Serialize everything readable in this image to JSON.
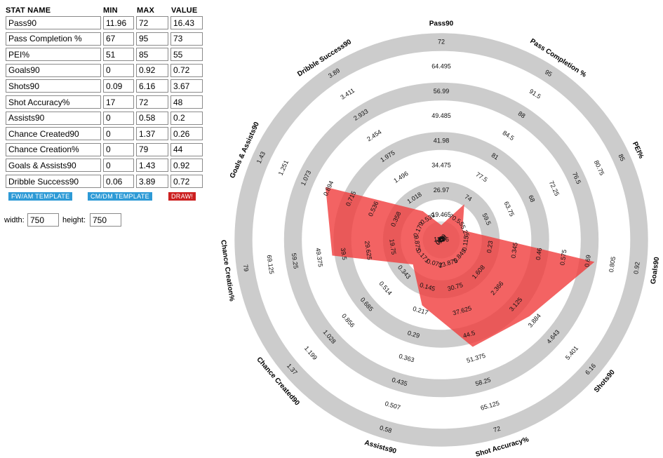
{
  "form": {
    "headers": {
      "name": "STAT NAME",
      "min": "MIN",
      "max": "MAX",
      "value": "VALUE"
    },
    "rows": [
      {
        "name": "Pass90",
        "min": "11.96",
        "max": "72",
        "value": "16.43"
      },
      {
        "name": "Pass Completion %",
        "min": "67",
        "max": "95",
        "value": "73"
      },
      {
        "name": "PEI%",
        "min": "51",
        "max": "85",
        "value": "55"
      },
      {
        "name": "Goals90",
        "min": "0",
        "max": "0.92",
        "value": "0.72"
      },
      {
        "name": "Shots90",
        "min": "0.09",
        "max": "6.16",
        "value": "3.67"
      },
      {
        "name": "Shot Accuracy%",
        "min": "17",
        "max": "72",
        "value": "48"
      },
      {
        "name": "Assists90",
        "min": "0",
        "max": "0.58",
        "value": "0.2"
      },
      {
        "name": "Chance Created90",
        "min": "0",
        "max": "1.37",
        "value": "0.26"
      },
      {
        "name": "Chance Creation%",
        "min": "0",
        "max": "79",
        "value": "44"
      },
      {
        "name": "Goals & Assists90",
        "min": "0",
        "max": "1.43",
        "value": "0.92"
      },
      {
        "name": "Dribble Success90",
        "min": "0.06",
        "max": "3.89",
        "value": "0.72"
      }
    ],
    "buttons": {
      "fw_am": "FW/AM TEMPLATE",
      "cm_dm": "CM/DM TEMPLATE",
      "draw": "DRAW!"
    },
    "width_label": "width:",
    "width_value": "750",
    "height_label": "height:",
    "height_value": "750"
  },
  "colors": {
    "ring": "#cccccc",
    "inner_ring": "#dddddd",
    "fill": "#f03c3c",
    "button_blue": "#2d9ad6",
    "button_red": "#cc2020"
  },
  "chart_data": {
    "type": "radar",
    "axes": [
      {
        "name": "Pass90",
        "min": 11.96,
        "max": 72,
        "value": 16.43,
        "ticks": [
          "11.96",
          "19.465",
          "26.97",
          "34.475",
          "41.98",
          "49.485",
          "56.99",
          "64.495",
          "72"
        ]
      },
      {
        "name": "Pass Completion %",
        "min": 67,
        "max": 95,
        "value": 73,
        "ticks": [
          "67",
          "70.5",
          "74",
          "77.5",
          "81",
          "84.5",
          "88",
          "91.5",
          "95"
        ]
      },
      {
        "name": "PEI%",
        "min": 51,
        "max": 85,
        "value": 55,
        "ticks": [
          "51",
          "55.25",
          "59.5",
          "63.75",
          "68",
          "72.25",
          "76.5",
          "80.75",
          "85"
        ]
      },
      {
        "name": "Goals90",
        "min": 0,
        "max": 0.92,
        "value": 0.72,
        "ticks": [
          "0",
          "0.115",
          "0.23",
          "0.345",
          "0.46",
          "0.575",
          "0.69",
          "0.805",
          "0.92"
        ]
      },
      {
        "name": "Shots90",
        "min": 0.09,
        "max": 6.16,
        "value": 3.67,
        "ticks": [
          "0.09",
          "0.849",
          "1.608",
          "2.366",
          "3.125",
          "3.884",
          "4.643",
          "5.401",
          "6.16"
        ]
      },
      {
        "name": "Shot Accuracy%",
        "min": 17,
        "max": 72,
        "value": 48,
        "ticks": [
          "17",
          "23.875",
          "30.75",
          "37.625",
          "44.5",
          "51.375",
          "58.25",
          "65.125",
          "72"
        ]
      },
      {
        "name": "Assists90",
        "min": 0,
        "max": 0.58,
        "value": 0.2,
        "ticks": [
          "0",
          "0.073",
          "0.145",
          "0.217",
          "0.29",
          "0.363",
          "0.435",
          "0.507",
          "0.58"
        ]
      },
      {
        "name": "Chance Created90",
        "min": 0,
        "max": 1.37,
        "value": 0.26,
        "ticks": [
          "0",
          "0.171",
          "0.343",
          "0.514",
          "0.685",
          "0.856",
          "1.028",
          "1.199",
          "1.37"
        ]
      },
      {
        "name": "Chance Creation%",
        "min": 0,
        "max": 79,
        "value": 44,
        "ticks": [
          "0",
          "9.875",
          "19.75",
          "29.625",
          "39.5",
          "49.375",
          "59.25",
          "69.125",
          "79"
        ]
      },
      {
        "name": "Goals & Assists90",
        "min": 0,
        "max": 1.43,
        "value": 0.92,
        "ticks": [
          "0",
          "0.179",
          "0.358",
          "0.536",
          "0.715",
          "0.894",
          "1.073",
          "1.251",
          "1.43"
        ]
      },
      {
        "name": "Dribble Success90",
        "min": 0.06,
        "max": 3.89,
        "value": 0.72,
        "ticks": [
          "0.06",
          "0.539",
          "1.018",
          "1.496",
          "1.975",
          "2.454",
          "2.933",
          "3.411",
          "3.89"
        ]
      }
    ],
    "rings": 4,
    "grid": true,
    "legend": "none"
  }
}
